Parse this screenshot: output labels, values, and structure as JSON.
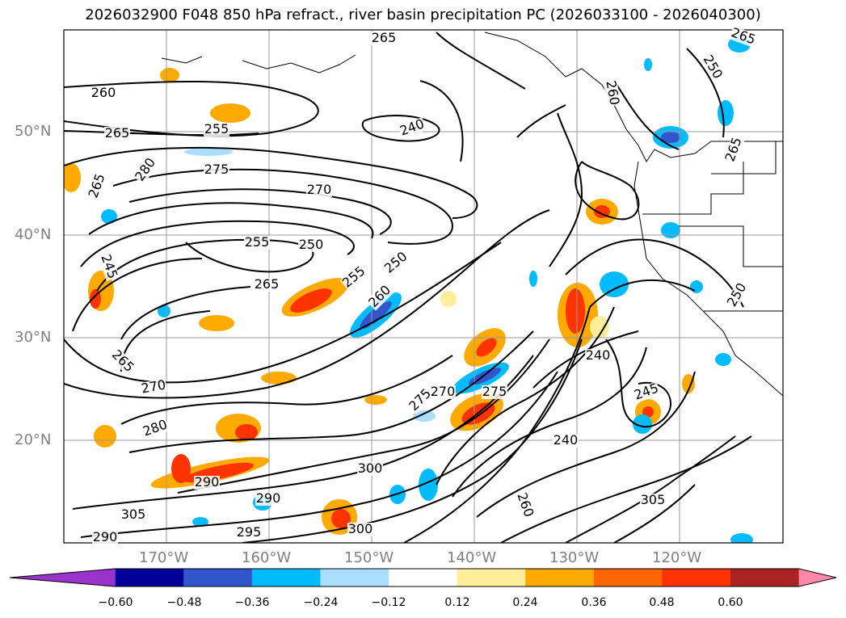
{
  "title": "2026032900 F048 850 hPa refract., river basin precipitation PC (2026033100 - 2026040300)",
  "map": {
    "lat_labels": [
      "50°N",
      "40°N",
      "30°N",
      "20°N"
    ],
    "lon_labels": [
      "170°W",
      "160°W",
      "150°W",
      "140°W",
      "130°W",
      "120°W"
    ],
    "contour_labels": [
      "265",
      "260",
      "265",
      "255",
      "280",
      "275",
      "270",
      "265",
      "255",
      "250",
      "250",
      "255",
      "265",
      "260",
      "245",
      "265",
      "270",
      "275",
      "280",
      "270",
      "275",
      "290",
      "300",
      "290",
      "295",
      "290",
      "305",
      "300",
      "305",
      "260",
      "240",
      "245",
      "240",
      "265",
      "250",
      "240",
      "260",
      "265",
      "250"
    ],
    "colors": {
      "contour": "#000000",
      "grid": "#9a9a9a",
      "land_outline": "#000000"
    }
  },
  "colorbar": {
    "colors": [
      "#9933cc",
      "#000099",
      "#3355cc",
      "#00bbff",
      "#aaddff",
      "#ffffff",
      "#ffee99",
      "#ffaa00",
      "#ff6600",
      "#ff3300",
      "#aa2222",
      "#ff88aa"
    ],
    "tick_labels": [
      "−0.60",
      "−0.48",
      "−0.36",
      "−0.24",
      "−0.12",
      "0.12",
      "0.24",
      "0.36",
      "0.48",
      "0.60"
    ]
  }
}
